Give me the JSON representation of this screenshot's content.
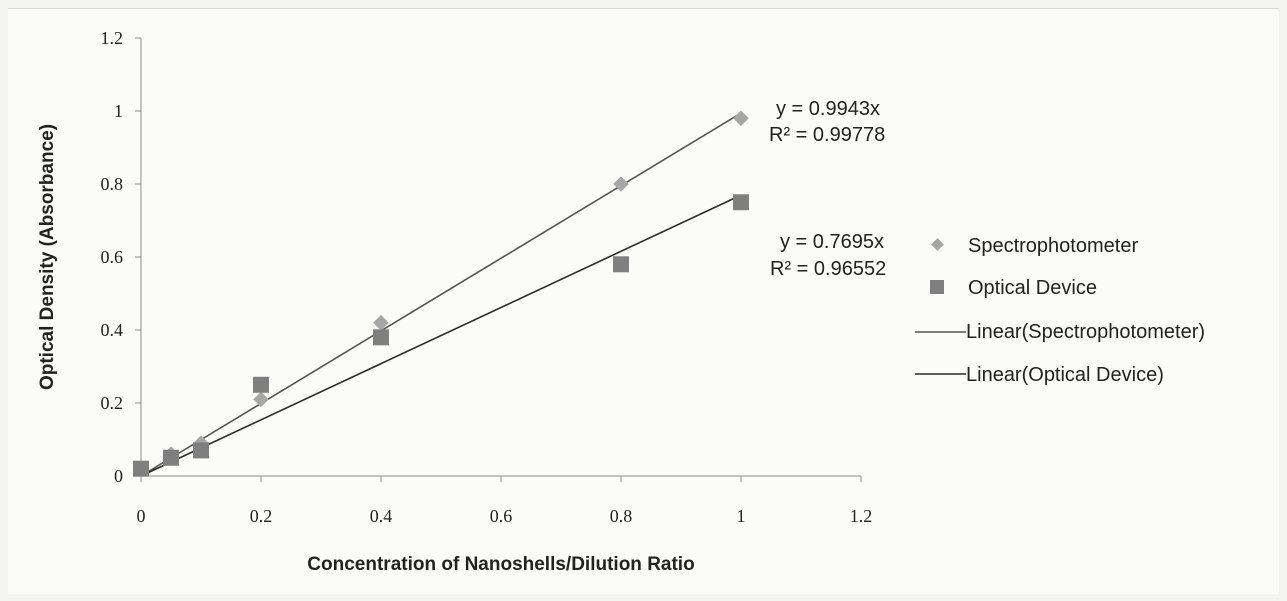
{
  "chart_data": {
    "type": "scatter",
    "xlabel": "Concentration of Nanoshells/Dilution Ratio",
    "ylabel": "Optical Density (Absorbance)",
    "xlim": [
      0,
      1.2
    ],
    "ylim": [
      0,
      1.2
    ],
    "xticks": [
      "0",
      "0.2",
      "0.4",
      "0.6",
      "0.8",
      "1",
      "1.2"
    ],
    "yticks": [
      "0",
      "0.2",
      "0.4",
      "0.6",
      "0.8",
      "1",
      "1.2"
    ],
    "grid": false,
    "legend_position": "right",
    "series": [
      {
        "name": "Spectrophotometer",
        "marker": "diamond",
        "color": "#a6a6a6",
        "x": [
          0,
          0.05,
          0.1,
          0.2,
          0.4,
          0.8,
          1
        ],
        "y": [
          0.02,
          0.06,
          0.09,
          0.21,
          0.42,
          0.8,
          0.98
        ]
      },
      {
        "name": "Optical Device",
        "marker": "square",
        "color": "#7f7f7f",
        "x": [
          0,
          0.05,
          0.1,
          0.2,
          0.4,
          0.8,
          1
        ],
        "y": [
          0.02,
          0.05,
          0.07,
          0.25,
          0.38,
          0.58,
          0.75
        ]
      }
    ],
    "trendlines": [
      {
        "name": "Linear(Spectrophotometer)",
        "slope": 0.9943,
        "equation": "y = 0.9943x",
        "r_squared": "R² = 0.99778",
        "color": "#555555"
      },
      {
        "name": "Linear(Optical Device)",
        "slope": 0.7695,
        "equation": "y = 0.7695x",
        "r_squared": "R² = 0.96552",
        "color": "#2b2b2b"
      }
    ]
  }
}
